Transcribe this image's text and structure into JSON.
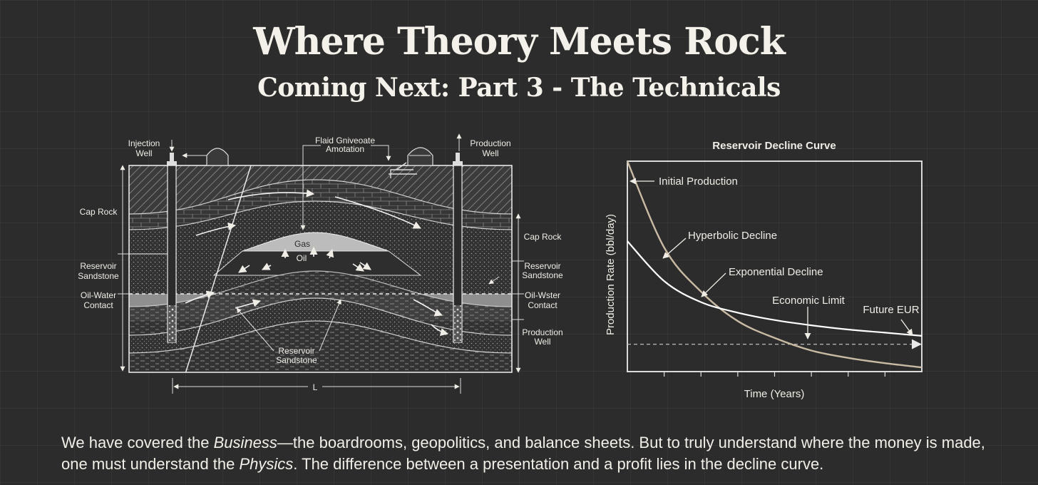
{
  "title": "Where Theory Meets Rock",
  "subtitle": "Coming Next: Part 3 - The Technicals",
  "diagram": {
    "labels": {
      "injection_well_1": "Injection",
      "injection_well_2": "Well",
      "production_well_1": "Production",
      "production_well_2": "Well",
      "annotation_1": "Flaid Gniveoate",
      "annotation_2": "Amotation",
      "cap_rock_left": "Cap Rock",
      "cap_rock_right": "Cap Rock",
      "reservoir_left_1": "Reservoir",
      "reservoir_left_2": "Sandstone",
      "reservoir_right_1": "Reservoir",
      "reservoir_right_2": "Sandstone",
      "owc_left_1": "Oil-Water",
      "owc_left_2": "Contact",
      "owc_right_1": "Oil-Wster",
      "owc_right_2": "Contact",
      "production_right_1": "Production",
      "production_right_2": "Well",
      "gas": "Gas",
      "oil": "Oil",
      "reservoir_bottom_1": "Reservoir",
      "reservoir_bottom_2": "Sandstone",
      "length": "L"
    }
  },
  "chart_data": {
    "type": "line",
    "title": "Reservoir Decline Curve",
    "xlabel": "Time (Years)",
    "ylabel": "Production Rate (bbl/day)",
    "x_ticks": 8,
    "series": [
      {
        "name": "Hyperbolic Decline",
        "color": "#ffffff",
        "x": [
          0,
          1,
          2,
          3,
          4,
          5,
          6,
          7,
          8
        ],
        "y": [
          62,
          43,
          33,
          28,
          24.5,
          22,
          20,
          18.5,
          17
        ]
      },
      {
        "name": "Exponential Decline",
        "color": "#c9bba3",
        "x": [
          0,
          1,
          2,
          3,
          4,
          5,
          6,
          7,
          8
        ],
        "y": [
          100,
          59,
          38,
          24,
          16,
          10,
          6.5,
          4,
          2
        ]
      }
    ],
    "economic_limit": 13,
    "ylim": [
      0,
      100
    ],
    "xlim": [
      0,
      8
    ],
    "annotations": {
      "initial_production": "Initial Production",
      "hyperbolic": "Hyperbolic Decline",
      "exponential": "Exponential Decline",
      "economic_limit": "Economic Limit",
      "future_eur": "Future EUR"
    }
  },
  "body_text": {
    "p1": "We have covered the ",
    "business": "Business",
    "p2": "—the boardrooms, geopolitics, and balance sheets. But to truly understand where the money is made, one must understand the ",
    "physics": "Physics",
    "p3": ". The difference between a presentation and a profit lies in the decline curve."
  },
  "colors": {
    "background": "#2c2c2c",
    "text": "#f3f0ea",
    "exponential_curve": "#c9bba3",
    "gas_zone": "#bcbcbc",
    "water_zone": "#8f8f8f"
  }
}
